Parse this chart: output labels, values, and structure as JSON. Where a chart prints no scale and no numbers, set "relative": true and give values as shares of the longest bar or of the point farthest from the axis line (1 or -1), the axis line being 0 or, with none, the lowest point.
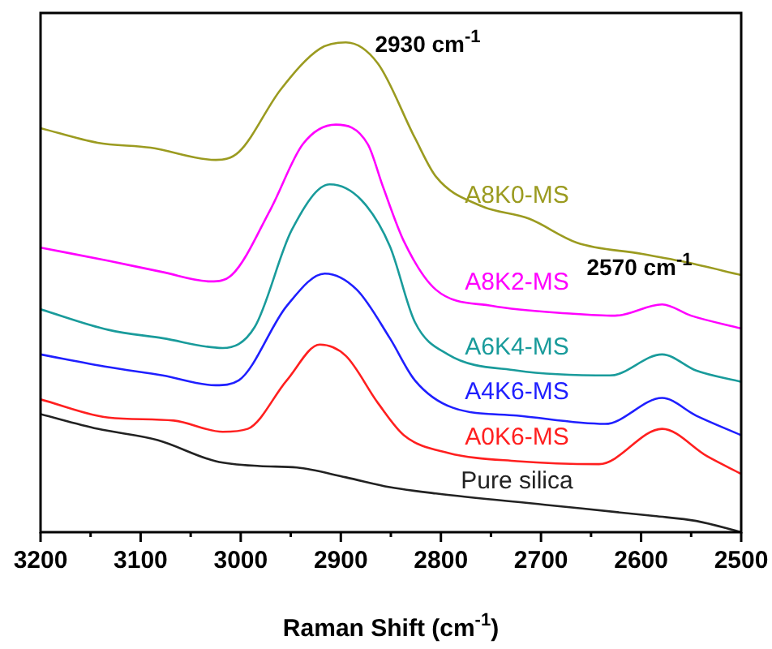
{
  "chart_data": {
    "type": "line",
    "relative": true,
    "xlabel": "Raman Shift (cm$^{-1}$)",
    "xlim": [
      3200,
      2500
    ],
    "xticks": [
      3200,
      {
        "value": 3150,
        "label": null
      },
      3100,
      {
        "value": 3050,
        "label": null
      },
      3000,
      {
        "value": 2950,
        "label": null
      },
      2900,
      {
        "value": 2850,
        "label": null
      },
      2800,
      {
        "value": 2750,
        "label": null
      },
      2700,
      {
        "value": 2650,
        "label": null
      },
      2600,
      {
        "value": 2550,
        "label": null
      },
      2500
    ],
    "grid": false,
    "legend": false,
    "marker": "none",
    "line_style": "solid",
    "annotations": [
      {
        "text": "2930 cm$^{-1}$",
        "x": 2895,
        "y": 1
      },
      {
        "text": "2570 cm$^{-1}$",
        "x": 2579,
        "y": 0.465
      }
    ],
    "series": [
      {
        "name": "A8K0-MS",
        "color": "#9b9b20",
        "x": [
          3200,
          3143,
          3090,
          3025,
          3002,
          2960,
          2921,
          2895,
          2863,
          2826,
          2805,
          2761,
          2712,
          2664,
          2599,
          2555,
          2500
        ],
        "values": [
          0.825,
          0.795,
          0.785,
          0.76,
          0.776,
          0.904,
          0.987,
          1.0,
          0.957,
          0.805,
          0.726,
          0.667,
          0.64,
          0.591,
          0.568,
          0.551,
          0.525
        ]
      },
      {
        "name": "A8K2-MS",
        "color": "#ff00ff",
        "x": [
          3200,
          3132,
          3078,
          3030,
          3009,
          2970,
          2938,
          2905,
          2873,
          2858,
          2837,
          2805,
          2749,
          2668,
          2626,
          2579,
          2550,
          2500
        ],
        "values": [
          0.581,
          0.554,
          0.531,
          0.512,
          0.525,
          0.66,
          0.792,
          0.832,
          0.792,
          0.706,
          0.594,
          0.495,
          0.462,
          0.446,
          0.442,
          0.465,
          0.442,
          0.416
        ]
      },
      {
        "name": "A6K4-MS",
        "color": "#199b9b",
        "x": [
          3200,
          3132,
          3078,
          3018,
          2986,
          2949,
          2911,
          2879,
          2851,
          2826,
          2793,
          2724,
          2631,
          2579,
          2545,
          2500
        ],
        "values": [
          0.455,
          0.413,
          0.396,
          0.376,
          0.419,
          0.617,
          0.71,
          0.677,
          0.584,
          0.429,
          0.363,
          0.33,
          0.32,
          0.363,
          0.33,
          0.307
        ]
      },
      {
        "name": "A4K6-MS",
        "color": "#1f1fff",
        "x": [
          3200,
          3132,
          3078,
          3025,
          3002,
          2954,
          2916,
          2884,
          2851,
          2826,
          2788,
          2724,
          2636,
          2579,
          2545,
          2500
        ],
        "values": [
          0.363,
          0.337,
          0.32,
          0.3,
          0.31,
          0.462,
          0.528,
          0.495,
          0.396,
          0.31,
          0.254,
          0.238,
          0.221,
          0.274,
          0.238,
          0.198
        ]
      },
      {
        "name": "A0K6-MS",
        "color": "#ff1f1f",
        "x": [
          3200,
          3132,
          3067,
          3018,
          2993,
          2954,
          2921,
          2895,
          2863,
          2837,
          2793,
          2724,
          2642,
          2579,
          2534,
          2500
        ],
        "values": [
          0.271,
          0.234,
          0.228,
          0.205,
          0.211,
          0.31,
          0.383,
          0.36,
          0.264,
          0.198,
          0.162,
          0.145,
          0.139,
          0.211,
          0.155,
          0.119
        ]
      },
      {
        "name": "Pure silica",
        "color": "#222222",
        "x": [
          3200,
          3143,
          3083,
          3025,
          2981,
          2944,
          2895,
          2851,
          2805,
          2696,
          2587,
          2545,
          2500
        ],
        "values": [
          0.241,
          0.211,
          0.188,
          0.145,
          0.135,
          0.132,
          0.112,
          0.092,
          0.079,
          0.056,
          0.033,
          0.023,
          0
        ]
      }
    ]
  }
}
